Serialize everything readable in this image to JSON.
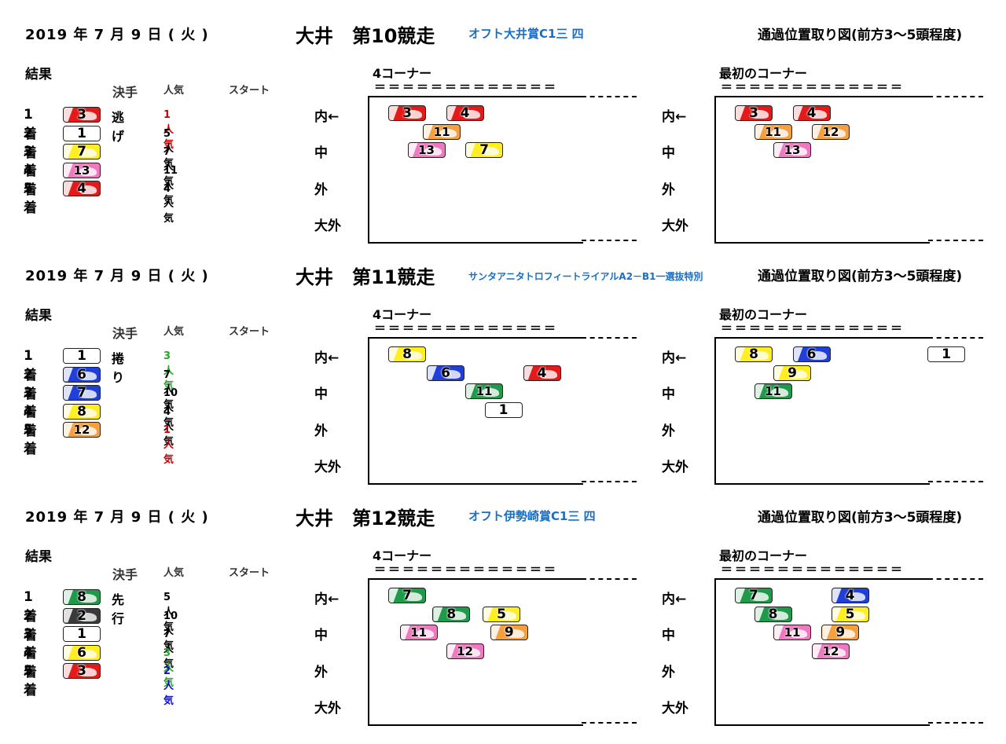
{
  "common": {
    "result_label": "結果",
    "col_kimete": "決手",
    "col_ninki": "人気",
    "col_start": "スタート",
    "corner4_label": "4コーナー",
    "corner1_label": "最初のコーナー",
    "eq_line": "＝＝＝＝＝＝＝＝＝＝＝＝＝",
    "lanes": [
      "内←",
      "中",
      "外",
      "大外"
    ]
  },
  "colors": {
    "1": "#ffffff",
    "2": "#3a3a3a",
    "3": "#e41a1a",
    "4": "#1f3fd8",
    "5": "#ffee22",
    "6": "#1f3fd8",
    "7": "#ffee22",
    "8": "#1f9a4a",
    "9": "#ffee22",
    "11": "#1f9a4a",
    "12": "#f4a040",
    "13": "#ee79c0",
    "red": "#cc0000",
    "green": "#22aa22",
    "blue": "#1010cc",
    "black": "#000000"
  },
  "races": [
    {
      "date": "2019 年  7  月  9  日  ( 火 )",
      "title": "大井　第10競走",
      "race_name": "オフト大井賞C1三 四",
      "name_small": false,
      "diagram_title": "通過位置取り図(前方3～5頭程度)",
      "results": [
        {
          "rank": "1着",
          "num": "3",
          "color": "#e41a1a",
          "kimete": "逃げ",
          "ninki": "1人気",
          "ninki_color": "#cc0000"
        },
        {
          "rank": "2着",
          "num": "1",
          "color": "#ffffff",
          "kimete": "",
          "ninki": "5人気",
          "ninki_color": "#000000"
        },
        {
          "rank": "3着",
          "num": "7",
          "color": "#ffee22",
          "kimete": "",
          "ninki": "7人気",
          "ninki_color": "#000000"
        },
        {
          "rank": "4着",
          "num": "13",
          "color": "#ee79c0",
          "kimete": "",
          "ninki": "11人気",
          "ninki_color": "#000000"
        },
        {
          "rank": "5着",
          "num": "4",
          "color": "#e41a1a",
          "kimete": "",
          "ninki": "4人気",
          "ninki_color": "#000000"
        }
      ],
      "corner4": [
        {
          "num": "3",
          "color": "#e41a1a",
          "col": 0,
          "row": 0
        },
        {
          "num": "4",
          "color": "#e41a1a",
          "col": 3,
          "row": 0
        },
        {
          "num": "11",
          "color": "#f4a040",
          "col": 1.8,
          "row": 1
        },
        {
          "num": "13",
          "color": "#ee79c0",
          "col": 1,
          "row": 2
        },
        {
          "num": "7",
          "color": "#ffee22",
          "col": 4,
          "row": 2
        }
      ],
      "corner1": [
        {
          "num": "3",
          "color": "#e41a1a",
          "col": 0,
          "row": 0
        },
        {
          "num": "4",
          "color": "#e41a1a",
          "col": 3,
          "row": 0
        },
        {
          "num": "11",
          "color": "#f4a040",
          "col": 1,
          "row": 1
        },
        {
          "num": "12",
          "color": "#f4a040",
          "col": 4,
          "row": 1
        },
        {
          "num": "13",
          "color": "#ee79c0",
          "col": 2,
          "row": 2
        }
      ]
    },
    {
      "date": "2019 年  7  月  9  日  ( 火 )",
      "title": "大井　第11競走",
      "race_name": "サンタアニタトロフィートライアルA2－B1一選抜特別",
      "name_small": true,
      "diagram_title": "通過位置取り図(前方3～5頭程度)",
      "results": [
        {
          "rank": "1着",
          "num": "1",
          "color": "#ffffff",
          "kimete": "捲り",
          "ninki": "3人気",
          "ninki_color": "#22aa22"
        },
        {
          "rank": "2着",
          "num": "6",
          "color": "#1f3fd8",
          "kimete": "",
          "ninki": "7人気",
          "ninki_color": "#000000"
        },
        {
          "rank": "3着",
          "num": "7",
          "color": "#1f3fd8",
          "kimete": "",
          "ninki": "10人気",
          "ninki_color": "#000000"
        },
        {
          "rank": "4着",
          "num": "8",
          "color": "#ffee22",
          "kimete": "",
          "ninki": "4人気",
          "ninki_color": "#000000"
        },
        {
          "rank": "5着",
          "num": "12",
          "color": "#f4a040",
          "kimete": "",
          "ninki": "1人気",
          "ninki_color": "#cc0000"
        }
      ],
      "corner4": [
        {
          "num": "8",
          "color": "#ffee22",
          "col": 0,
          "row": 0
        },
        {
          "num": "6",
          "color": "#1f3fd8",
          "col": 2,
          "row": 1
        },
        {
          "num": "4",
          "color": "#e41a1a",
          "col": 7,
          "row": 1
        },
        {
          "num": "11",
          "color": "#1f9a4a",
          "col": 4,
          "row": 2
        },
        {
          "num": "1",
          "color": "#ffffff",
          "col": 5,
          "row": 3
        }
      ],
      "corner1": [
        {
          "num": "8",
          "color": "#ffee22",
          "col": 0,
          "row": 0
        },
        {
          "num": "6",
          "color": "#1f3fd8",
          "col": 3,
          "row": 0
        },
        {
          "num": "1",
          "color": "#ffffff",
          "col": 10,
          "row": 0
        },
        {
          "num": "9",
          "color": "#ffee22",
          "col": 2,
          "row": 1
        },
        {
          "num": "11",
          "color": "#1f9a4a",
          "col": 1,
          "row": 2
        }
      ]
    },
    {
      "date": "2019 年  7  月  9  日  ( 火 )",
      "title": "大井　第12競走",
      "race_name": "オフト伊勢崎賞C1三 四",
      "name_small": false,
      "diagram_title": "通過位置取り図(前方3～5頭程度)",
      "results": [
        {
          "rank": "1着",
          "num": "8",
          "color": "#1f9a4a",
          "kimete": "先行",
          "ninki": "5人気",
          "ninki_color": "#000000"
        },
        {
          "rank": "2着",
          "num": "2",
          "color": "#3a3a3a",
          "kimete": "",
          "ninki": "10人気",
          "ninki_color": "#000000"
        },
        {
          "rank": "3着",
          "num": "1",
          "color": "#ffffff",
          "kimete": "",
          "ninki": "7人気",
          "ninki_color": "#000000"
        },
        {
          "rank": "4着",
          "num": "6",
          "color": "#ffee22",
          "kimete": "",
          "ninki": "3人気",
          "ninki_color": "#22aa22"
        },
        {
          "rank": "5着",
          "num": "3",
          "color": "#e41a1a",
          "kimete": "",
          "ninki": "2人気",
          "ninki_color": "#1010cc"
        }
      ],
      "corner4": [
        {
          "num": "7",
          "color": "#1f9a4a",
          "col": 0,
          "row": 0
        },
        {
          "num": "8",
          "color": "#1f9a4a",
          "col": 2.3,
          "row": 1
        },
        {
          "num": "5",
          "color": "#ffee22",
          "col": 4.9,
          "row": 1
        },
        {
          "num": "11",
          "color": "#ee79c0",
          "col": 0.6,
          "row": 2
        },
        {
          "num": "9",
          "color": "#f4a040",
          "col": 5.3,
          "row": 2
        },
        {
          "num": "12",
          "color": "#ee79c0",
          "col": 3,
          "row": 3
        }
      ],
      "corner1": [
        {
          "num": "7",
          "color": "#1f9a4a",
          "col": 0,
          "row": 0
        },
        {
          "num": "4",
          "color": "#1f3fd8",
          "col": 5,
          "row": 0
        },
        {
          "num": "8",
          "color": "#1f9a4a",
          "col": 1,
          "row": 1
        },
        {
          "num": "5",
          "color": "#ffee22",
          "col": 5,
          "row": 1
        },
        {
          "num": "11",
          "color": "#ee79c0",
          "col": 2,
          "row": 2
        },
        {
          "num": "9",
          "color": "#f4a040",
          "col": 4.5,
          "row": 2
        },
        {
          "num": "12",
          "color": "#ee79c0",
          "col": 4,
          "row": 3
        }
      ]
    }
  ]
}
